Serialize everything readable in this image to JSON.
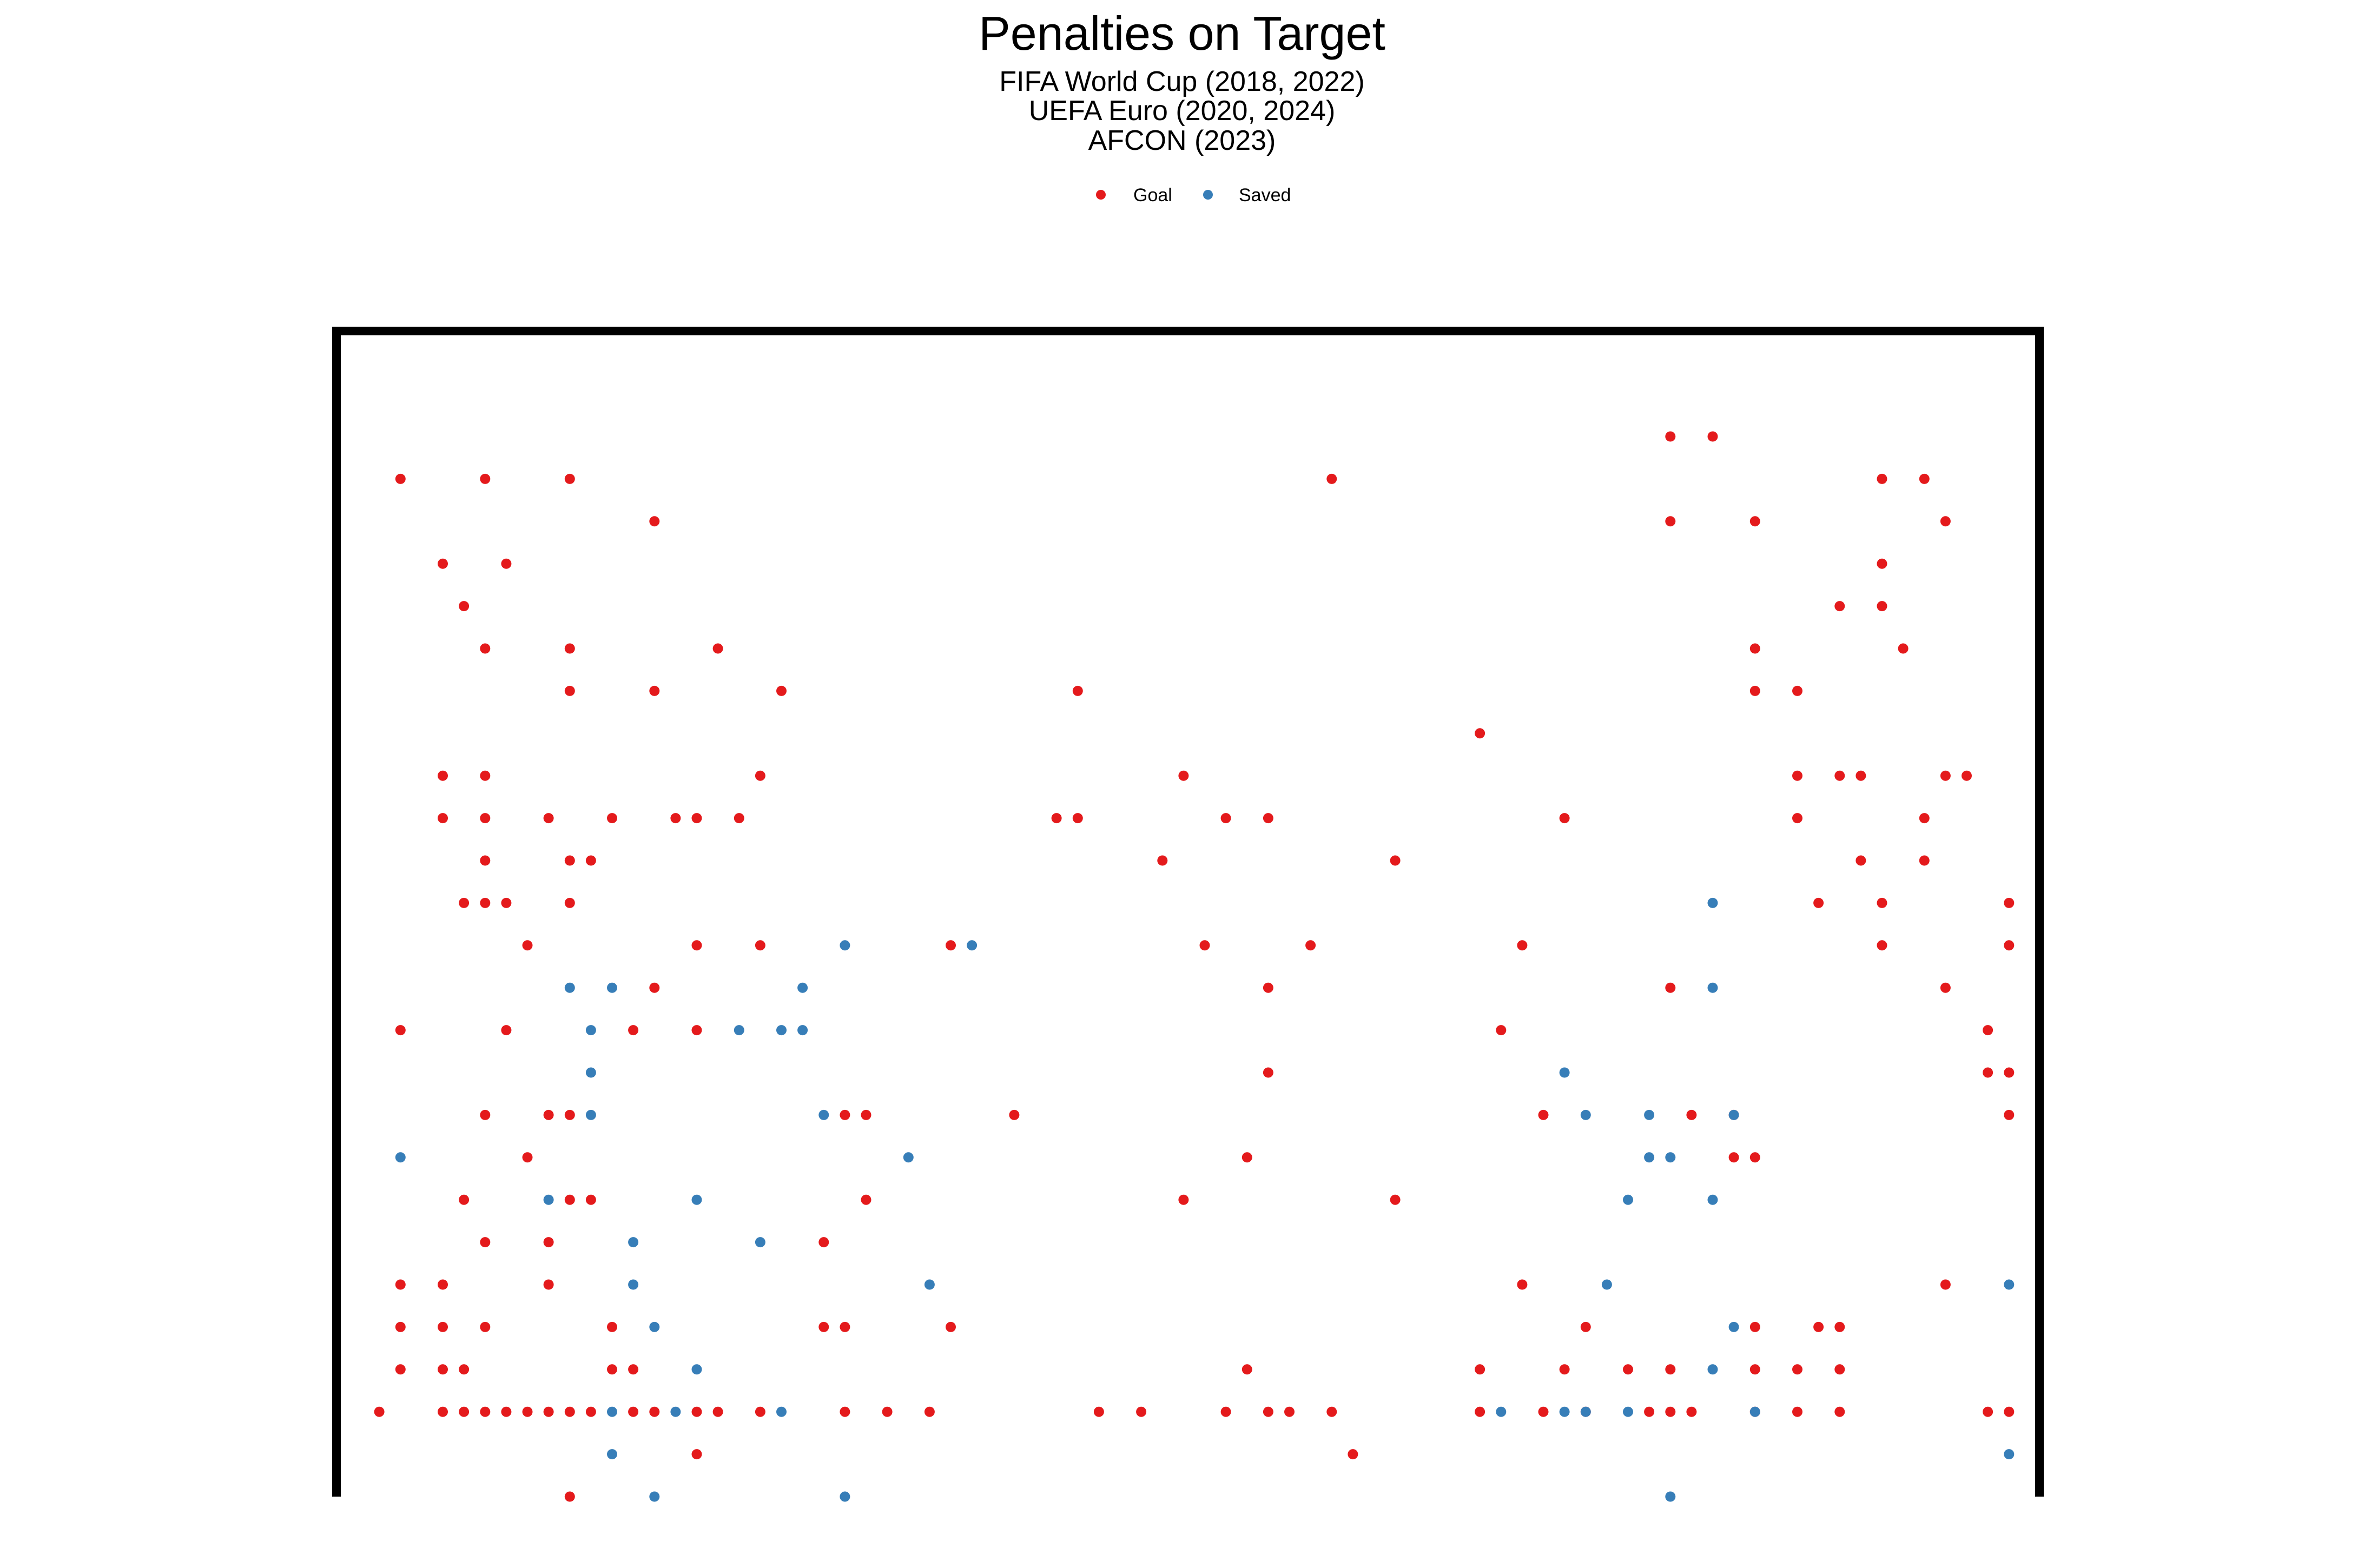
{
  "chart_data": {
    "type": "scatter",
    "title": "Penalties on Target",
    "subtitle_lines": [
      "FIFA World Cup (2018, 2022)",
      "UEFA Euro (2020, 2024)",
      "AFCON (2023)"
    ],
    "xlabel": "",
    "ylabel": "",
    "xlim": [
      -0.5,
      40
    ],
    "ylim": [
      -0.5,
      27.5
    ],
    "grid": false,
    "legend_position": "top-center",
    "colors": {
      "Goal": "#e41a1c",
      "Saved": "#377eb8",
      "goal_frame": "#000000"
    },
    "series": [
      {
        "name": "Goal",
        "points": [
          [
            31,
            25
          ],
          [
            32,
            25
          ],
          [
            1,
            24
          ],
          [
            3,
            24
          ],
          [
            5,
            24
          ],
          [
            23,
            24
          ],
          [
            36,
            24
          ],
          [
            37,
            24
          ],
          [
            7,
            23
          ],
          [
            31,
            23
          ],
          [
            33,
            23
          ],
          [
            37.5,
            23
          ],
          [
            2,
            22
          ],
          [
            3.5,
            22
          ],
          [
            36,
            22
          ],
          [
            2.5,
            21
          ],
          [
            35,
            21
          ],
          [
            36,
            21
          ],
          [
            3,
            20
          ],
          [
            5,
            20
          ],
          [
            8.5,
            20
          ],
          [
            33,
            20
          ],
          [
            36.5,
            20
          ],
          [
            5,
            19
          ],
          [
            7,
            19
          ],
          [
            10,
            19
          ],
          [
            17,
            19
          ],
          [
            33,
            19
          ],
          [
            34,
            19
          ],
          [
            26.5,
            18
          ],
          [
            2,
            17
          ],
          [
            3,
            17
          ],
          [
            9.5,
            17
          ],
          [
            19.5,
            17
          ],
          [
            34,
            17
          ],
          [
            35,
            17
          ],
          [
            35.5,
            17
          ],
          [
            37.5,
            17
          ],
          [
            38,
            17
          ],
          [
            2,
            16
          ],
          [
            3,
            16
          ],
          [
            4.5,
            16
          ],
          [
            6,
            16
          ],
          [
            7.5,
            16
          ],
          [
            8,
            16
          ],
          [
            9,
            16
          ],
          [
            16.5,
            16
          ],
          [
            17,
            16
          ],
          [
            20.5,
            16
          ],
          [
            21.5,
            16
          ],
          [
            28.5,
            16
          ],
          [
            34,
            16
          ],
          [
            37,
            16
          ],
          [
            3,
            15
          ],
          [
            5,
            15
          ],
          [
            5.5,
            15
          ],
          [
            19,
            15
          ],
          [
            24.5,
            15
          ],
          [
            35.5,
            15
          ],
          [
            37,
            15
          ],
          [
            2.5,
            14
          ],
          [
            3,
            14
          ],
          [
            3.5,
            14
          ],
          [
            5,
            14
          ],
          [
            34.5,
            14
          ],
          [
            36,
            14
          ],
          [
            39,
            14
          ],
          [
            4,
            13
          ],
          [
            8,
            13
          ],
          [
            9.5,
            13
          ],
          [
            14,
            13
          ],
          [
            20,
            13
          ],
          [
            22.5,
            13
          ],
          [
            27.5,
            13
          ],
          [
            36,
            13
          ],
          [
            39,
            13
          ],
          [
            7,
            12
          ],
          [
            21.5,
            12
          ],
          [
            31,
            12
          ],
          [
            37.5,
            12
          ],
          [
            1,
            11
          ],
          [
            3.5,
            11
          ],
          [
            6.5,
            11
          ],
          [
            8,
            11
          ],
          [
            27,
            11
          ],
          [
            38.5,
            11
          ],
          [
            21.5,
            10
          ],
          [
            38.5,
            10
          ],
          [
            39,
            10
          ],
          [
            3,
            9
          ],
          [
            4.5,
            9
          ],
          [
            5,
            9
          ],
          [
            11.5,
            9
          ],
          [
            12,
            9
          ],
          [
            15.5,
            9
          ],
          [
            28,
            9
          ],
          [
            31.5,
            9
          ],
          [
            32.5,
            9
          ],
          [
            39,
            9
          ],
          [
            4,
            8
          ],
          [
            21,
            8
          ],
          [
            32.5,
            8
          ],
          [
            33,
            8
          ],
          [
            2.5,
            7
          ],
          [
            5,
            7
          ],
          [
            5.5,
            7
          ],
          [
            12,
            7
          ],
          [
            19.5,
            7
          ],
          [
            24.5,
            7
          ],
          [
            3,
            6
          ],
          [
            4.5,
            6
          ],
          [
            11,
            6
          ],
          [
            1,
            5
          ],
          [
            2,
            5
          ],
          [
            4.5,
            5
          ],
          [
            27.5,
            5
          ],
          [
            37.5,
            5
          ],
          [
            1,
            4
          ],
          [
            2,
            4
          ],
          [
            3,
            4
          ],
          [
            6,
            4
          ],
          [
            11,
            4
          ],
          [
            11.5,
            4
          ],
          [
            14,
            4
          ],
          [
            29,
            4
          ],
          [
            33,
            4
          ],
          [
            34.5,
            4
          ],
          [
            35,
            4
          ],
          [
            1,
            3
          ],
          [
            2,
            3
          ],
          [
            2.5,
            3
          ],
          [
            6,
            3
          ],
          [
            6.5,
            3
          ],
          [
            21,
            3
          ],
          [
            26.5,
            3
          ],
          [
            28.5,
            3
          ],
          [
            30,
            3
          ],
          [
            31,
            3
          ],
          [
            33,
            3
          ],
          [
            34,
            3
          ],
          [
            35,
            3
          ],
          [
            0.5,
            2
          ],
          [
            2,
            2
          ],
          [
            2.5,
            2
          ],
          [
            3,
            2
          ],
          [
            3.5,
            2
          ],
          [
            4,
            2
          ],
          [
            4.5,
            2
          ],
          [
            5,
            2
          ],
          [
            5.5,
            2
          ],
          [
            6.5,
            2
          ],
          [
            7,
            2
          ],
          [
            8,
            2
          ],
          [
            8.5,
            2
          ],
          [
            9.5,
            2
          ],
          [
            11.5,
            2
          ],
          [
            12.5,
            2
          ],
          [
            13.5,
            2
          ],
          [
            17.5,
            2
          ],
          [
            18.5,
            2
          ],
          [
            20.5,
            2
          ],
          [
            21.5,
            2
          ],
          [
            22,
            2
          ],
          [
            23,
            2
          ],
          [
            26.5,
            2
          ],
          [
            28,
            2
          ],
          [
            29,
            2
          ],
          [
            30.5,
            2
          ],
          [
            31,
            2
          ],
          [
            31.5,
            2
          ],
          [
            33,
            2
          ],
          [
            34,
            2
          ],
          [
            35,
            2
          ],
          [
            38.5,
            2
          ],
          [
            39,
            2
          ],
          [
            8,
            1
          ],
          [
            23.5,
            1
          ],
          [
            5,
            0
          ]
        ]
      },
      {
        "name": "Saved",
        "points": [
          [
            32,
            14
          ],
          [
            11.5,
            13
          ],
          [
            14.5,
            13
          ],
          [
            5,
            12
          ],
          [
            6,
            12
          ],
          [
            10.5,
            12
          ],
          [
            32,
            12
          ],
          [
            5.5,
            11
          ],
          [
            9,
            11
          ],
          [
            10,
            11
          ],
          [
            10.5,
            11
          ],
          [
            5.5,
            10
          ],
          [
            28.5,
            10
          ],
          [
            5.5,
            9
          ],
          [
            11,
            9
          ],
          [
            29,
            9
          ],
          [
            30.5,
            9
          ],
          [
            32.5,
            9
          ],
          [
            1,
            8
          ],
          [
            13,
            8
          ],
          [
            30.5,
            8
          ],
          [
            31,
            8
          ],
          [
            4.5,
            7
          ],
          [
            8,
            7
          ],
          [
            30,
            7
          ],
          [
            32,
            7
          ],
          [
            6.5,
            6
          ],
          [
            9.5,
            6
          ],
          [
            6.5,
            5
          ],
          [
            13.5,
            5
          ],
          [
            29.5,
            5
          ],
          [
            39,
            5
          ],
          [
            7,
            4
          ],
          [
            32.5,
            4
          ],
          [
            8,
            3
          ],
          [
            32,
            3
          ],
          [
            6,
            2
          ],
          [
            7.5,
            2
          ],
          [
            10,
            2
          ],
          [
            27,
            2
          ],
          [
            28.5,
            2
          ],
          [
            29,
            2
          ],
          [
            30,
            2
          ],
          [
            33,
            2
          ],
          [
            6,
            1
          ],
          [
            39,
            1
          ],
          [
            7,
            0
          ],
          [
            11.5,
            0
          ],
          [
            31,
            0
          ]
        ]
      }
    ]
  }
}
